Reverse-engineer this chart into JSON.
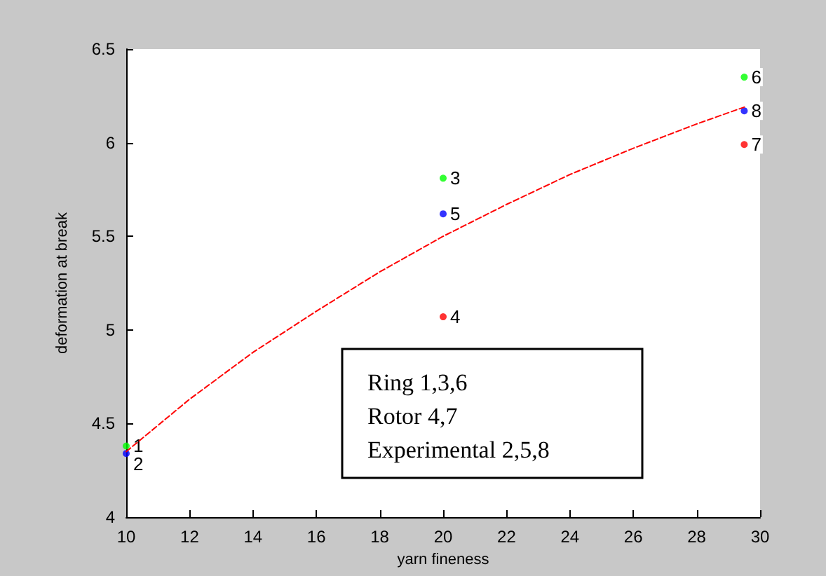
{
  "chart_data": {
    "type": "scatter",
    "xlabel": "yarn fineness",
    "ylabel": "deformation at break",
    "xlim": [
      10,
      30
    ],
    "xticks": [
      10,
      12,
      14,
      16,
      18,
      20,
      22,
      24,
      26,
      28,
      30
    ],
    "ylim": [
      4,
      6.5
    ],
    "yticks": [
      4,
      4.5,
      5,
      5.5,
      6,
      6.5
    ],
    "grid": false,
    "marker": "circle",
    "series": [
      {
        "color": "#00ff00",
        "x": [
          10,
          20,
          29.5
        ],
        "values": [
          4.38,
          5.81,
          6.35
        ]
      },
      {
        "color": "#ff0000",
        "x": [
          20,
          29.5
        ],
        "values": [
          5.07,
          5.99
        ]
      },
      {
        "color": "#0000ff",
        "x": [
          10,
          20,
          29.5
        ],
        "values": [
          4.34,
          5.62,
          6.17
        ]
      },
      {
        "type": "line",
        "color": "#ff0000",
        "line_style": "dashed",
        "marker": "none",
        "x": [
          10,
          12,
          14,
          16,
          18,
          20,
          22,
          24,
          26,
          28,
          29.5
        ],
        "values": [
          4.35,
          4.63,
          4.88,
          5.1,
          5.31,
          5.5,
          5.67,
          5.83,
          5.97,
          6.1,
          6.19
        ]
      }
    ],
    "annotations": [
      {
        "text": "1",
        "x": 10,
        "y": 4.38
      },
      {
        "text": "2",
        "x": 10,
        "y": 4.34
      },
      {
        "text": "3",
        "x": 20,
        "y": 5.81
      },
      {
        "text": "5",
        "x": 20,
        "y": 5.62
      },
      {
        "text": "4",
        "x": 20,
        "y": 5.07
      },
      {
        "text": "6",
        "x": 29.5,
        "y": 6.35
      },
      {
        "text": "8",
        "x": 29.5,
        "y": 6.17
      },
      {
        "text": "7",
        "x": 29.5,
        "y": 5.99
      },
      "Ring 1,3,6",
      "Rotor 4,7",
      "Experimental 2,5,8"
    ]
  }
}
